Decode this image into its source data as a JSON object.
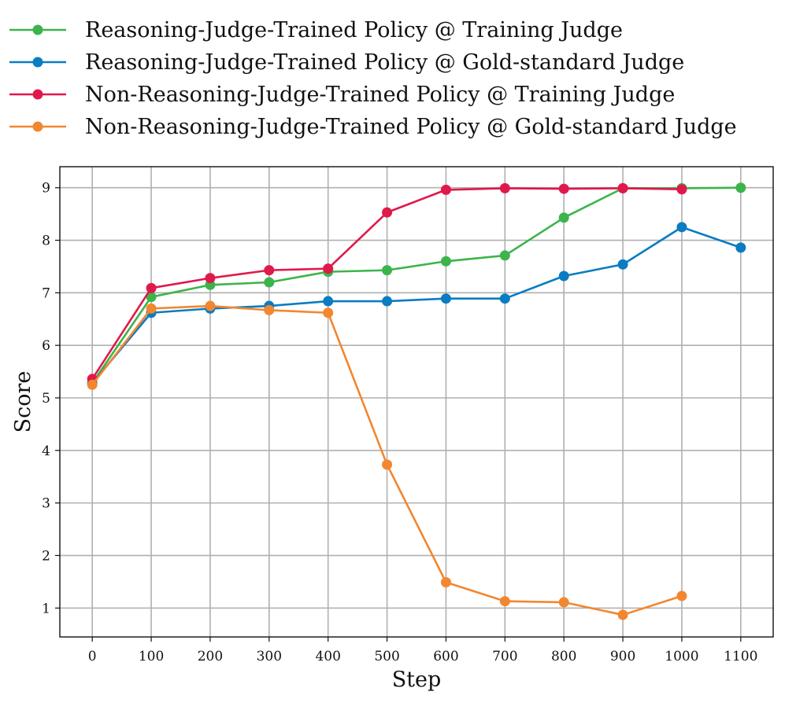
{
  "chart_data": {
    "type": "line",
    "xlabel": "Step",
    "ylabel": "Score",
    "xlim": [
      -55,
      1155
    ],
    "ylim": [
      0.45,
      9.4
    ],
    "xticks": [
      0,
      100,
      200,
      300,
      400,
      500,
      600,
      700,
      800,
      900,
      1000,
      1100
    ],
    "yticks": [
      1,
      2,
      3,
      4,
      5,
      6,
      7,
      8,
      9
    ],
    "grid": true,
    "legend_position": "above plot, top-left",
    "series": [
      {
        "name": "Reasoning-Judge-Trained Policy @ Training Judge",
        "color": "#3cb44b",
        "x": [
          0,
          100,
          200,
          300,
          400,
          500,
          600,
          700,
          800,
          900,
          1000,
          1100
        ],
        "y": [
          5.28,
          6.92,
          7.15,
          7.2,
          7.4,
          7.43,
          7.6,
          7.71,
          8.43,
          8.99,
          8.99,
          9.0
        ]
      },
      {
        "name": "Reasoning-Judge-Trained Policy @ Gold-standard Judge",
        "color": "#0a7cc2",
        "x": [
          0,
          100,
          200,
          300,
          400,
          500,
          600,
          700,
          800,
          900,
          1000,
          1100
        ],
        "y": [
          5.28,
          6.62,
          6.7,
          6.75,
          6.84,
          6.84,
          6.89,
          6.89,
          7.32,
          7.54,
          8.25,
          7.86
        ]
      },
      {
        "name": "Non-Reasoning-Judge-Trained Policy @ Training Judge",
        "color": "#e0194b",
        "x": [
          0,
          100,
          200,
          300,
          400,
          500,
          600,
          700,
          800,
          900,
          1000
        ],
        "y": [
          5.36,
          7.09,
          7.28,
          7.43,
          7.46,
          8.53,
          8.96,
          8.99,
          8.98,
          8.99,
          8.97
        ]
      },
      {
        "name": "Non-Reasoning-Judge-Trained Policy @ Gold-standard Judge",
        "color": "#f28730",
        "x": [
          0,
          100,
          200,
          300,
          400,
          500,
          600,
          700,
          800,
          900,
          1000
        ],
        "y": [
          5.25,
          6.7,
          6.75,
          6.67,
          6.62,
          3.73,
          1.49,
          1.13,
          1.11,
          0.87,
          1.23
        ]
      }
    ]
  }
}
